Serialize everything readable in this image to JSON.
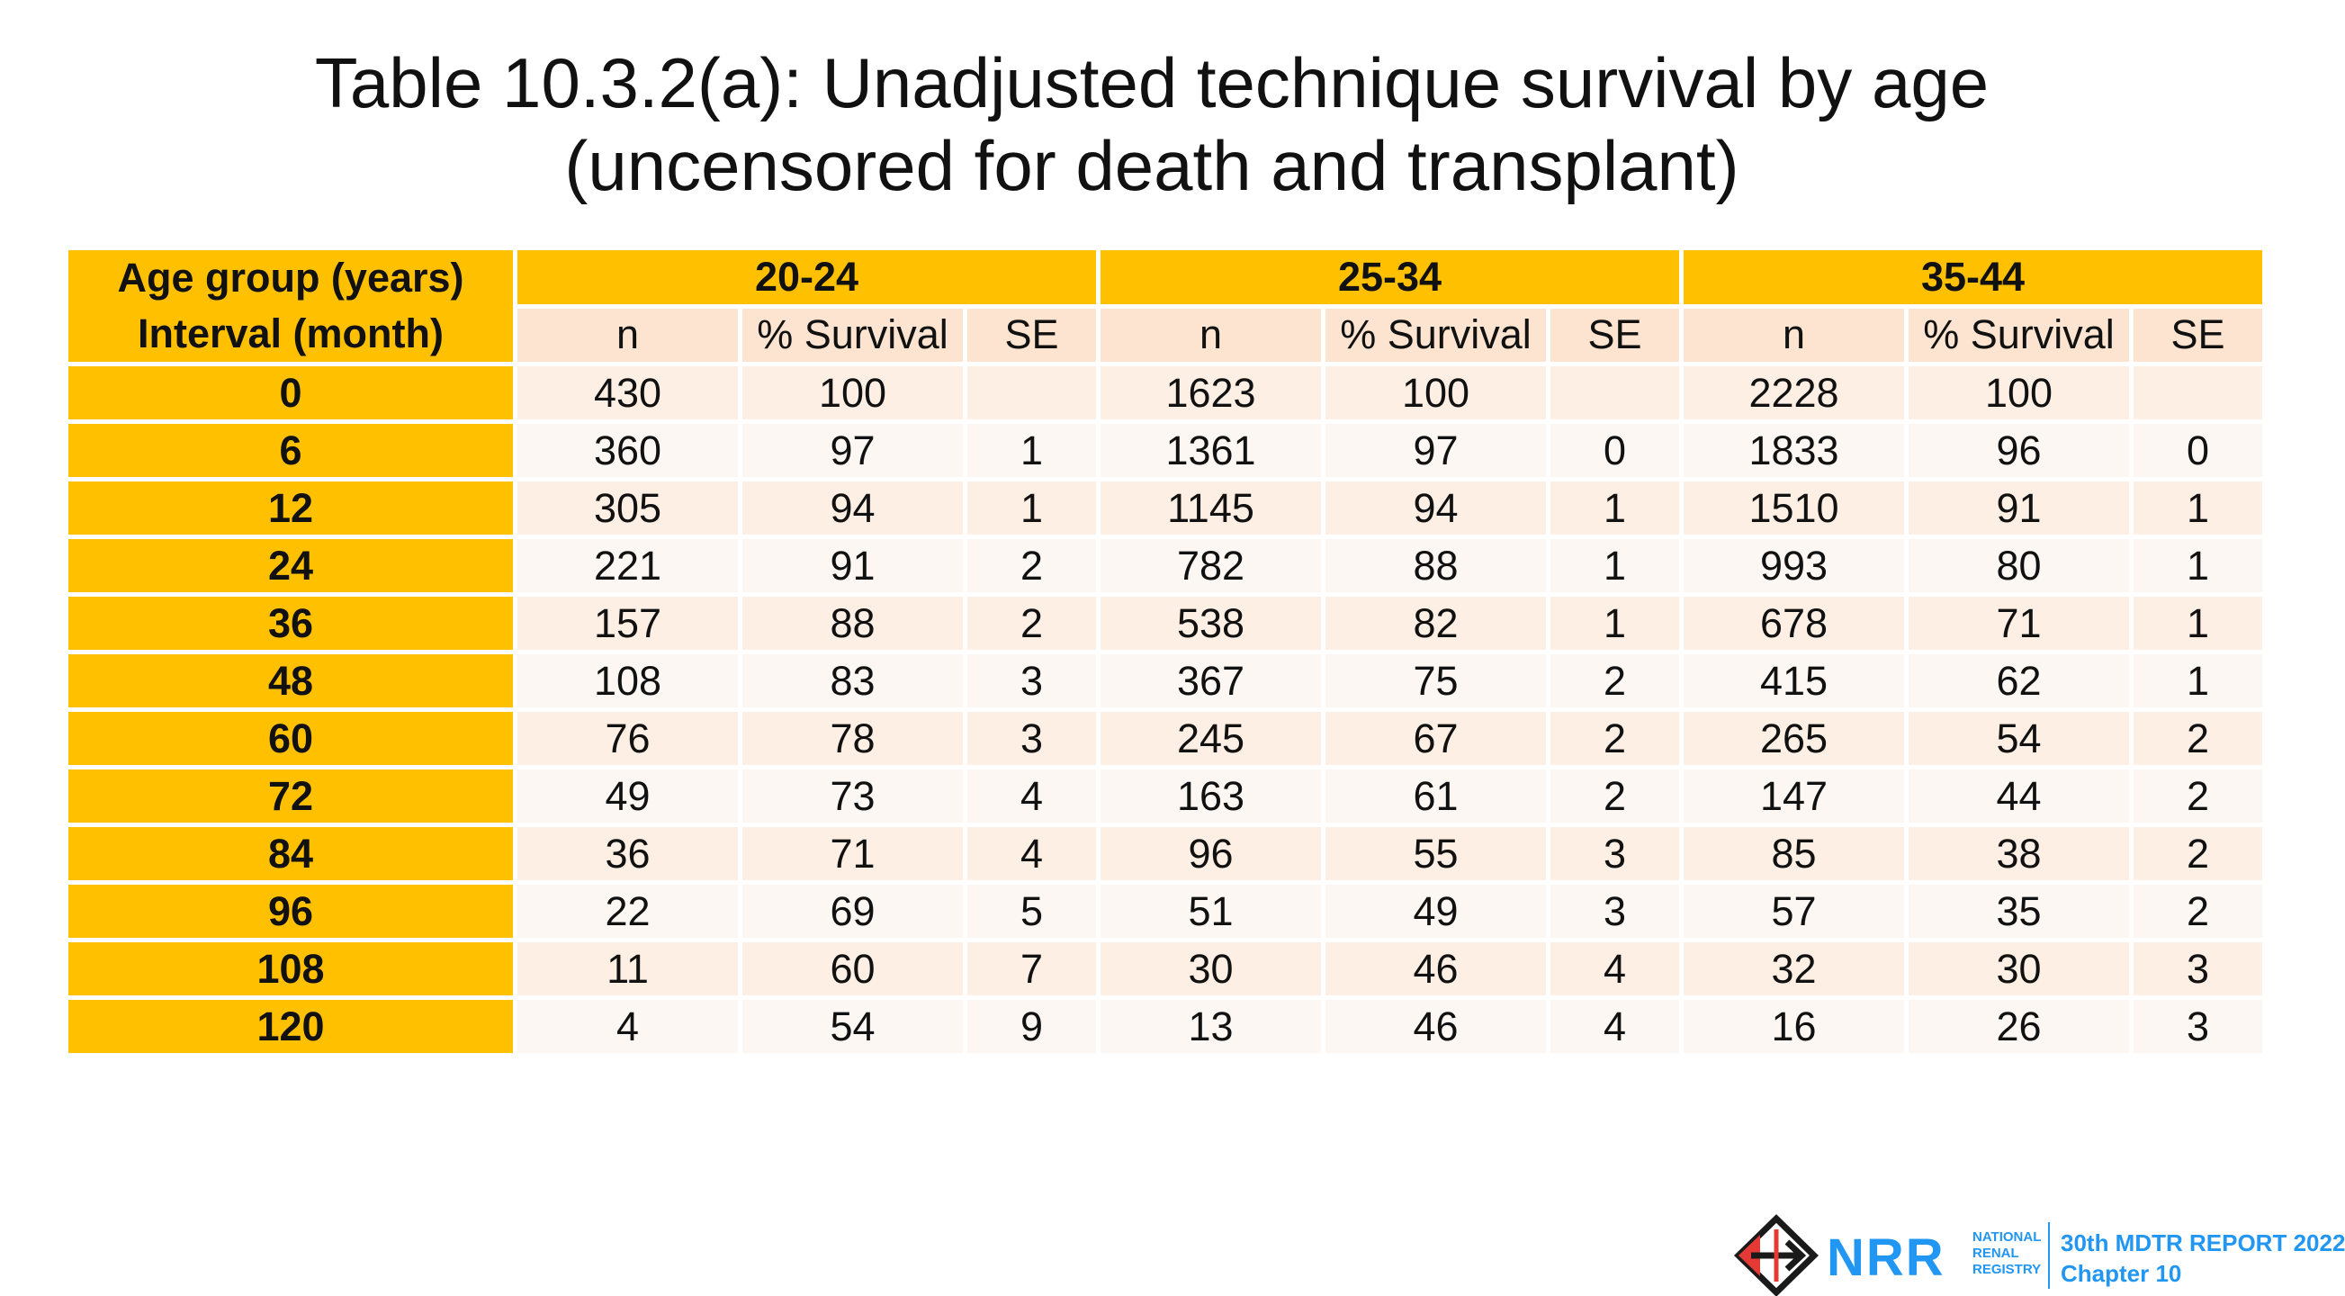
{
  "title": {
    "line1": "Table 10.3.2(a): Unadjusted technique survival by age",
    "line2": "(uncensored for death and transplant)"
  },
  "table": {
    "corner_line1": "Age group (years)",
    "corner_line2": "Interval (month)",
    "groups": [
      "20-24",
      "25-34",
      "35-44"
    ],
    "subheaders": [
      "n",
      "% Survival",
      "SE"
    ],
    "rows": [
      {
        "interval": "0",
        "cells": [
          "430",
          "100",
          "",
          "1623",
          "100",
          "",
          "2228",
          "100",
          ""
        ]
      },
      {
        "interval": "6",
        "cells": [
          "360",
          "97",
          "1",
          "1361",
          "97",
          "0",
          "1833",
          "96",
          "0"
        ]
      },
      {
        "interval": "12",
        "cells": [
          "305",
          "94",
          "1",
          "1145",
          "94",
          "1",
          "1510",
          "91",
          "1"
        ]
      },
      {
        "interval": "24",
        "cells": [
          "221",
          "91",
          "2",
          "782",
          "88",
          "1",
          "993",
          "80",
          "1"
        ]
      },
      {
        "interval": "36",
        "cells": [
          "157",
          "88",
          "2",
          "538",
          "82",
          "1",
          "678",
          "71",
          "1"
        ]
      },
      {
        "interval": "48",
        "cells": [
          "108",
          "83",
          "3",
          "367",
          "75",
          "2",
          "415",
          "62",
          "1"
        ]
      },
      {
        "interval": "60",
        "cells": [
          "76",
          "78",
          "3",
          "245",
          "67",
          "2",
          "265",
          "54",
          "2"
        ]
      },
      {
        "interval": "72",
        "cells": [
          "49",
          "73",
          "4",
          "163",
          "61",
          "2",
          "147",
          "44",
          "2"
        ]
      },
      {
        "interval": "84",
        "cells": [
          "36",
          "71",
          "4",
          "96",
          "55",
          "3",
          "85",
          "38",
          "2"
        ]
      },
      {
        "interval": "96",
        "cells": [
          "22",
          "69",
          "5",
          "51",
          "49",
          "3",
          "57",
          "35",
          "2"
        ]
      },
      {
        "interval": "108",
        "cells": [
          "11",
          "60",
          "7",
          "30",
          "46",
          "4",
          "32",
          "30",
          "3"
        ]
      },
      {
        "interval": "120",
        "cells": [
          "4",
          "54",
          "9",
          "13",
          "46",
          "4",
          "16",
          "26",
          "3"
        ]
      }
    ]
  },
  "footer": {
    "logo_mark": "NRR",
    "logo_words": [
      "NATIONAL",
      "RENAL",
      "REGISTRY"
    ],
    "report_line1": "30th MDTR REPORT 2022",
    "report_line2": "Chapter 10"
  },
  "colors": {
    "header_gold": "#ffc000",
    "row_light": "#fdefe4",
    "row_lighter": "#fcf7f2",
    "brand_blue": "#2196f3"
  }
}
